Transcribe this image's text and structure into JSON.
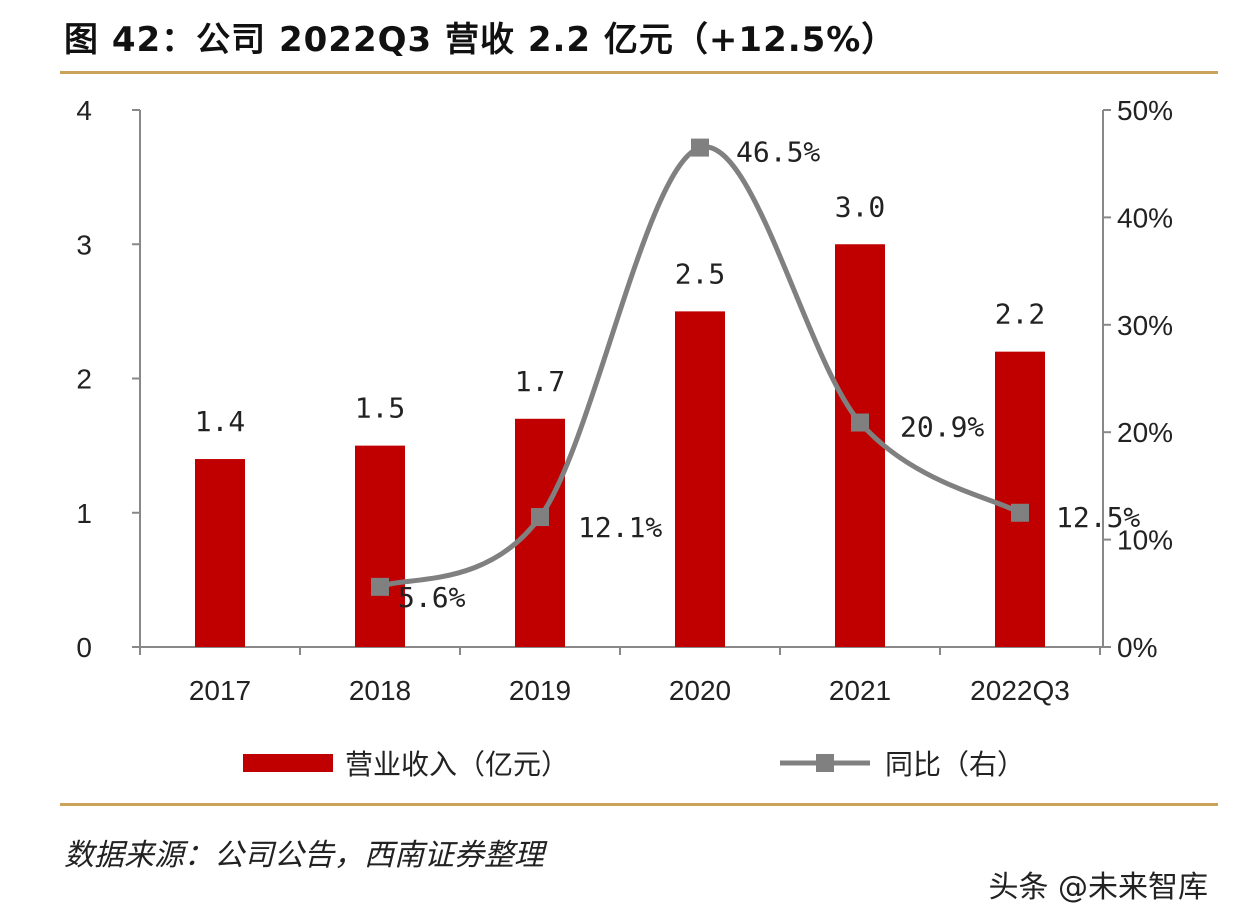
{
  "title": "图 42：公司 2022Q3 营收 2.2 亿元（+12.5%）",
  "source": "数据来源：公司公告，西南证券整理",
  "watermark": "头条 @未来智库",
  "chart_data": {
    "type": "bar+line",
    "categories": [
      "2017",
      "2018",
      "2019",
      "2020",
      "2021",
      "2022Q3"
    ],
    "series": [
      {
        "name": "营业收入（亿元）",
        "type": "bar",
        "axis": "left",
        "color": "#C00000",
        "values": [
          1.4,
          1.5,
          1.7,
          2.5,
          3.0,
          2.2
        ],
        "labels": [
          "1.4",
          "1.5",
          "1.7",
          "2.5",
          "3.0",
          "2.2"
        ]
      },
      {
        "name": "同比（右）",
        "type": "line",
        "axis": "right",
        "color": "#808080",
        "values": [
          null,
          5.6,
          12.1,
          46.5,
          20.9,
          12.5
        ],
        "labels": [
          "",
          "5.6%",
          "12.1%",
          "46.5%",
          "20.9%",
          "12.5%"
        ]
      }
    ],
    "left_axis": {
      "ylim": [
        0,
        4
      ],
      "ticks": [
        "0",
        "1",
        "2",
        "3",
        "4"
      ]
    },
    "right_axis": {
      "ylim": [
        0,
        50
      ],
      "ticks": [
        "0%",
        "10%",
        "20%",
        "30%",
        "40%",
        "50%"
      ]
    },
    "legend": "bottom",
    "grid": false
  }
}
